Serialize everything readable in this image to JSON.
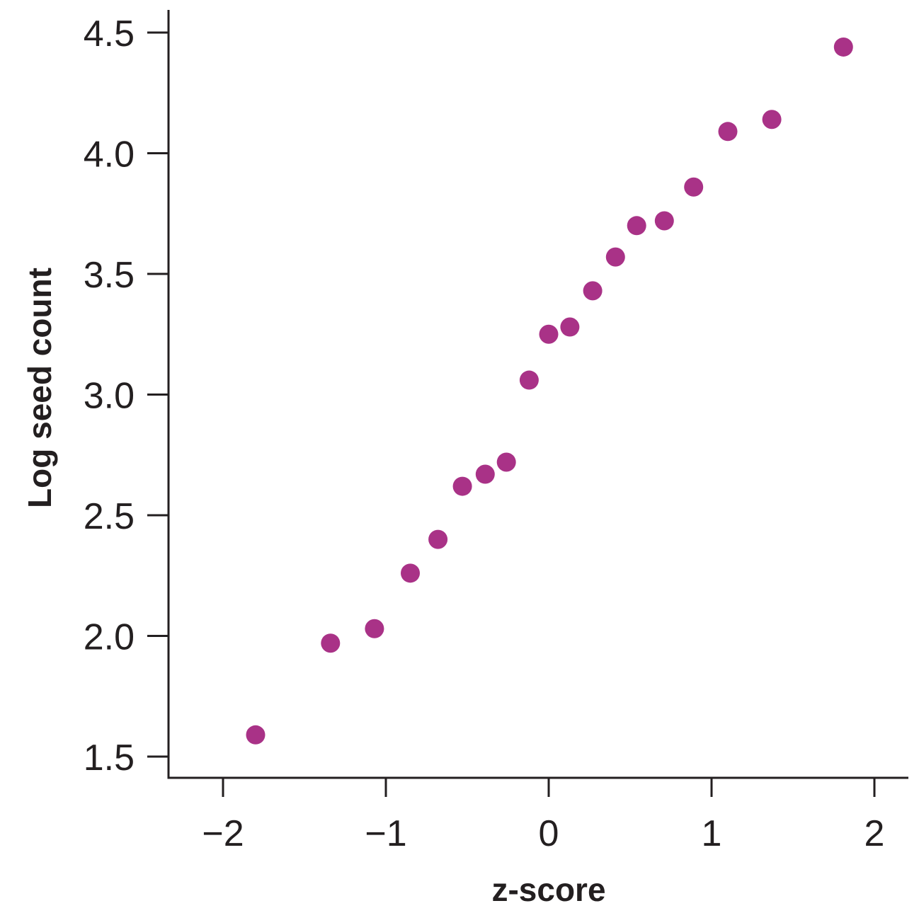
{
  "chart_data": {
    "type": "scatter",
    "title": "",
    "xlabel": "z-score",
    "ylabel": "Log seed count",
    "xlim": [
      -2.33,
      2.2
    ],
    "ylim": [
      1.4,
      4.58
    ],
    "x_ticks": [
      -2,
      -1,
      0,
      1,
      2
    ],
    "x_tick_labels": [
      "−2",
      "−1",
      "0",
      "1",
      "2"
    ],
    "y_ticks": [
      1.5,
      2.0,
      2.5,
      3.0,
      3.5,
      4.0,
      4.5
    ],
    "y_tick_labels": [
      "1.5",
      "2.0",
      "2.5",
      "3.0",
      "3.5",
      "4.0",
      "4.5"
    ],
    "grid": false,
    "legend": "none",
    "point_color": "#a93287",
    "axis_color": "#231f20",
    "points": [
      {
        "x": -1.8,
        "y": 1.59
      },
      {
        "x": -1.34,
        "y": 1.97
      },
      {
        "x": -1.07,
        "y": 2.03
      },
      {
        "x": -0.85,
        "y": 2.26
      },
      {
        "x": -0.68,
        "y": 2.4
      },
      {
        "x": -0.53,
        "y": 2.62
      },
      {
        "x": -0.39,
        "y": 2.67
      },
      {
        "x": -0.26,
        "y": 2.72
      },
      {
        "x": -0.12,
        "y": 3.06
      },
      {
        "x": 0.0,
        "y": 3.25
      },
      {
        "x": 0.13,
        "y": 3.28
      },
      {
        "x": 0.27,
        "y": 3.43
      },
      {
        "x": 0.41,
        "y": 3.57
      },
      {
        "x": 0.54,
        "y": 3.7
      },
      {
        "x": 0.71,
        "y": 3.72
      },
      {
        "x": 0.89,
        "y": 3.86
      },
      {
        "x": 1.1,
        "y": 4.09
      },
      {
        "x": 1.37,
        "y": 4.14
      },
      {
        "x": 1.81,
        "y": 4.44
      }
    ]
  }
}
